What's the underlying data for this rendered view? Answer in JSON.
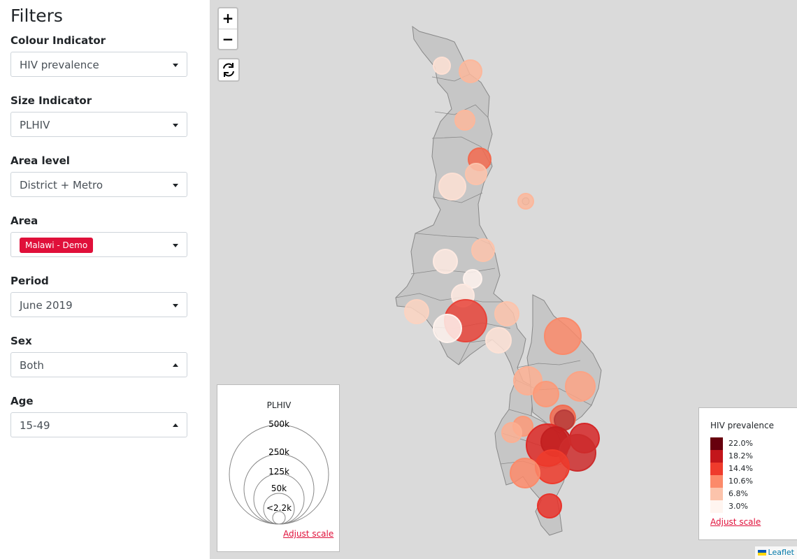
{
  "sidebar": {
    "title": "Filters",
    "filters": [
      {
        "label": "Colour Indicator",
        "value": "HIV prevalence",
        "caret": "down"
      },
      {
        "label": "Size Indicator",
        "value": "PLHIV",
        "caret": "down"
      },
      {
        "label": "Area level",
        "value": "District + Metro",
        "caret": "down"
      },
      {
        "label": "Area",
        "tag": "Malawi - Demo",
        "caret": "down"
      },
      {
        "label": "Period",
        "value": "June 2019",
        "caret": "down"
      },
      {
        "label": "Sex",
        "value": "Both",
        "caret": "up"
      },
      {
        "label": "Age",
        "value": "15-49",
        "caret": "up"
      }
    ]
  },
  "map": {
    "zoom_in": "+",
    "zoom_out": "−",
    "reset_icon": "refresh-icon",
    "size_legend": {
      "title": "PLHIV",
      "labels": [
        "500k",
        "250k",
        "125k",
        "50k",
        "<2.2k"
      ],
      "adjust": "Adjust scale"
    },
    "color_legend": {
      "title": "HIV prevalence",
      "items": [
        {
          "label": "22.0%",
          "color": "#67000d"
        },
        {
          "label": "18.2%",
          "color": "#c3161b"
        },
        {
          "label": "14.4%",
          "color": "#ef3b2c"
        },
        {
          "label": "10.6%",
          "color": "#fc8a6a"
        },
        {
          "label": "6.8%",
          "color": "#fcc3ab"
        },
        {
          "label": "3.0%",
          "color": "#fff5f0"
        }
      ],
      "adjust": "Adjust scale"
    },
    "attribution": "Leaflet"
  }
}
